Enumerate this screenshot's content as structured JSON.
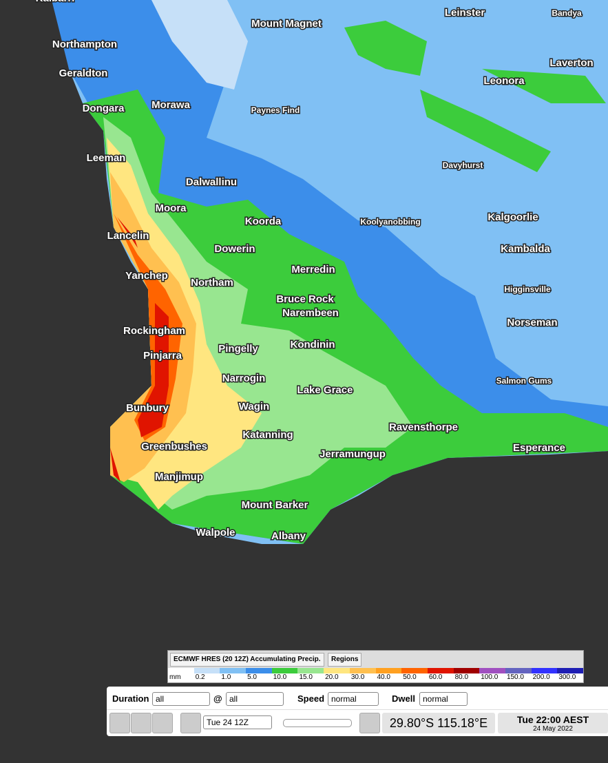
{
  "map": {
    "places": [
      "Kalbarri",
      "Northampton",
      "Geraldton",
      "Dongara",
      "Morawa",
      "Leeman",
      "Dalwallinu",
      "Moora",
      "Lancelin",
      "Koorda",
      "Dowerin",
      "Yanchep",
      "Northam",
      "Merredin",
      "Bruce Rock",
      "Narembeen",
      "Rockingham",
      "Kondinin",
      "Pingelly",
      "Pinjarra",
      "Narrogin",
      "Lake Grace",
      "Wagin",
      "Bunbury",
      "Katanning",
      "Ravensthorpe",
      "Greenbushes",
      "Jerramungup",
      "Esperance",
      "Manjimup",
      "Mount Barker",
      "Walpole",
      "Albany",
      "Mount Magnet",
      "Paynes Find",
      "Leinster",
      "Bandya",
      "Laverton",
      "Leonora",
      "Davyhurst",
      "Koolyanobbing",
      "Kalgoorlie",
      "Kambalda",
      "Higginsville",
      "Norseman",
      "Salmon Gums"
    ]
  },
  "legend": {
    "title": "ECMWF HRES (20 12Z) Accumulating Precip.",
    "button": "Regions",
    "unit": "mm",
    "labels": [
      "0.2",
      "1.0",
      "5.0",
      "10.0",
      "15.0",
      "20.0",
      "30.0",
      "40.0",
      "50.0",
      "60.0",
      "80.0",
      "100.0",
      "150.0",
      "200.0",
      "300.0"
    ],
    "colors": [
      "#ffffff",
      "#c6e0f8",
      "#80c0f4",
      "#3c8eea",
      "#3ccc3c",
      "#98e690",
      "#ffe680",
      "#ffc050",
      "#ffa020",
      "#ff6400",
      "#e01400",
      "#a00000",
      "#a050c0",
      "#6464c0",
      "#3232ff",
      "#1e1eb4"
    ]
  },
  "controls": {
    "duration_label": "Duration",
    "duration": "all",
    "at": "@",
    "at_value": "all",
    "speed_label": "Speed",
    "speed": "normal",
    "dwell_label": "Dwell",
    "dwell": "normal",
    "time": "Tue 24 12Z",
    "coords": "29.80°S 115.18°E",
    "clock": "Tue 22:00 AEST",
    "date": "24 May 2022"
  }
}
